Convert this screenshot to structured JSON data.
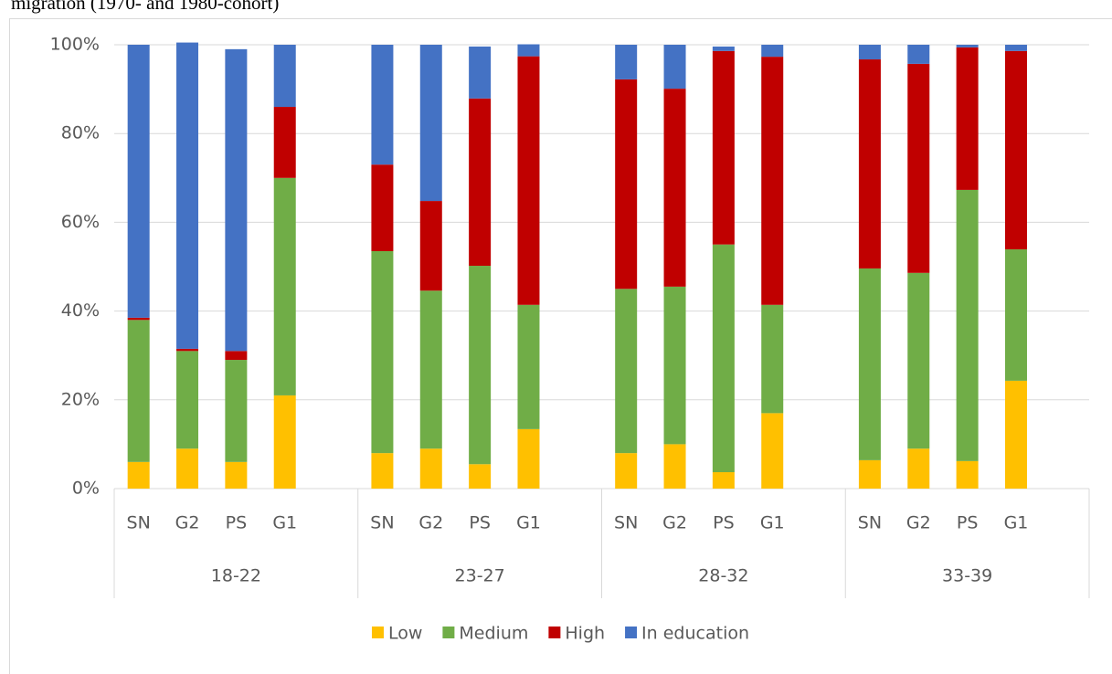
{
  "caption": "migration (1970- and 1980-cohort)",
  "chart_data": {
    "type": "stacked_bar",
    "categories": [
      "SN",
      "G2",
      "PS",
      "G1",
      null,
      "SN",
      "G2",
      "PS",
      "G1",
      null,
      "SN",
      "G2",
      "PS",
      "G1",
      null,
      "SN",
      "G2",
      "PS",
      "G1"
    ],
    "groups": [
      "18-22",
      "23-27",
      "28-32",
      "33-39"
    ],
    "series": [
      {
        "name": "Low",
        "color": "#FFC000",
        "values": [
          6,
          9,
          6,
          21,
          null,
          8,
          9,
          5.5,
          13.4,
          null,
          8,
          10,
          3.7,
          17,
          null,
          6.4,
          9,
          6.2,
          24.3
        ]
      },
      {
        "name": "Medium",
        "color": "#70AD47",
        "values": [
          32,
          22,
          23,
          49,
          null,
          45.5,
          35.6,
          44.7,
          28,
          null,
          37,
          35.5,
          51.3,
          24.4,
          null,
          43.2,
          39.6,
          61.1,
          29.6
        ]
      },
      {
        "name": "High",
        "color": "#C00000",
        "values": [
          0.5,
          0.5,
          2,
          16,
          null,
          19.5,
          20.2,
          37.7,
          56,
          null,
          47.2,
          44.6,
          43.6,
          55.9,
          null,
          47.1,
          47.1,
          32.1,
          44.7
        ]
      },
      {
        "name": "In education",
        "color": "#4472C4",
        "values": [
          61.5,
          69,
          68,
          14,
          null,
          27,
          35.2,
          11.7,
          2.7,
          null,
          7.8,
          9.9,
          1,
          2.7,
          null,
          3.3,
          4.3,
          0.6,
          1.4
        ]
      }
    ],
    "ylim": [
      0,
      100
    ],
    "yticks": [
      {
        "value": 0,
        "label": "0%"
      },
      {
        "value": 20,
        "label": "20%"
      },
      {
        "value": 40,
        "label": "40%"
      },
      {
        "value": 60,
        "label": "60%"
      },
      {
        "value": 80,
        "label": "80%"
      },
      {
        "value": 100,
        "label": "100%"
      }
    ],
    "grid": true,
    "legend": "bottom"
  }
}
